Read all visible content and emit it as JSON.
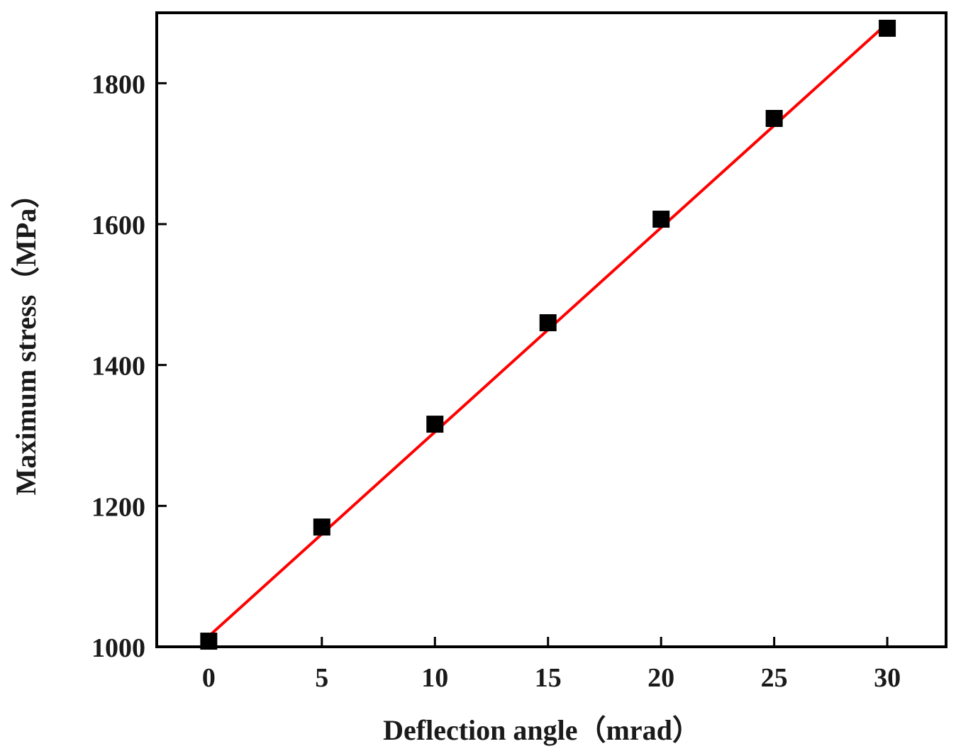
{
  "chart_data": {
    "type": "scatter",
    "xlabel": "Deflection angle（mrad）",
    "ylabel": "Maximum stress（MPa）",
    "xlim": [
      -2.3,
      32.6
    ],
    "ylim": [
      1000,
      1900
    ],
    "x_ticks": [
      "0",
      "5",
      "10",
      "15",
      "20",
      "25",
      "30"
    ],
    "y_ticks": [
      "1000",
      "1200",
      "1400",
      "1600",
      "1800"
    ],
    "grid": false,
    "legend": "none",
    "series": [
      {
        "kind": "scatter",
        "marker": "square",
        "color": "#000000",
        "x": [
          0,
          5,
          10,
          15,
          20,
          25,
          30
        ],
        "y": [
          1008,
          1170,
          1316,
          1460,
          1607,
          1750,
          1878
        ]
      },
      {
        "kind": "line",
        "color": "#ff0000",
        "x": [
          0,
          30
        ],
        "y": [
          1015,
          1885
        ]
      }
    ]
  }
}
